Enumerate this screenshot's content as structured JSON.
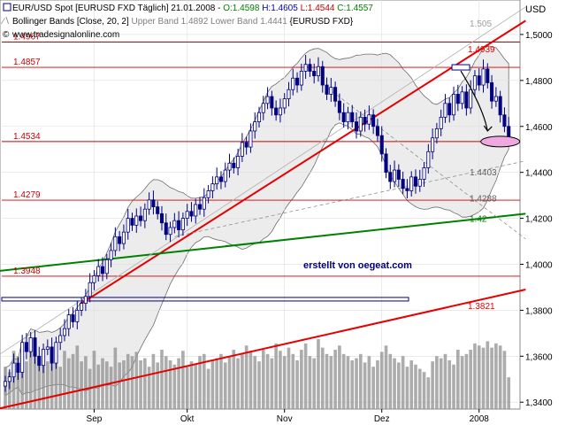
{
  "header": {
    "line1_prefix": "EUR/USD Spot [EURUSD FXD  Täglich] 21.01.2008 - ",
    "open": "O:1.4598",
    "high": "H:1.4605",
    "low": "L:1.4544",
    "close": "C:1.4557",
    "line2_prefix": "Bollinger Bands [Close, 20, 2]",
    "line2_bands": " Upper Band 1.4892 Lower Band 1.4441",
    "line2_suffix": " {EURUSD FXD}",
    "line3": "www.tradesignalonline.com"
  },
  "colors": {
    "candle_up": "#ffffff",
    "candle_down": "#000080",
    "band_fill": "#ececec",
    "level_line": "#cc0000",
    "trend_red": "#e60000",
    "trend_green": "#008000",
    "ohlc_open": "#008000",
    "ohlc_high": "#0000c0",
    "ohlc_low": "#c00000",
    "ohlc_close": "#008000"
  },
  "chart_data": {
    "type": "candlestick",
    "currency_label": "USD",
    "y_axis": {
      "range": [
        1.337,
        1.515
      ],
      "ticks": [
        "1,3400",
        "1,3600",
        "1,3800",
        "1,4000",
        "1,4200",
        "1,4400",
        "1,4600",
        "1,4800",
        "1,5000"
      ],
      "tick_values": [
        1.34,
        1.36,
        1.38,
        1.4,
        1.42,
        1.44,
        1.46,
        1.48,
        1.5
      ]
    },
    "x_axis": {
      "ticks": [
        "Sep",
        "Okt",
        "Nov",
        "Dez",
        "2008"
      ],
      "tick_day_index": [
        21,
        43,
        66,
        89,
        112
      ]
    },
    "horizontal_levels": [
      {
        "value": 1.4967,
        "label": "1.4967",
        "label_side": "left"
      },
      {
        "value": 1.4857,
        "label": "1.4857",
        "label_side": "left"
      },
      {
        "value": 1.4534,
        "label": "1.4534",
        "label_side": "left"
      },
      {
        "value": 1.4279,
        "label": "1.4279",
        "label_side": "left"
      },
      {
        "value": 1.3948,
        "label": "1.3948",
        "label_side": "left"
      }
    ],
    "trendline_labels": [
      {
        "value": 1.4939,
        "label": "1.4939"
      },
      {
        "value": 1.42,
        "label": "1.42"
      },
      {
        "value": 1.3821,
        "label": "1.3821"
      },
      {
        "value": 1.4403,
        "label": "1.4403"
      },
      {
        "value": 1.4288,
        "label": "1.4288"
      },
      {
        "value": 1.505,
        "label": "1.505"
      }
    ],
    "annotation": "erstellt von oegeat.com",
    "closes": [
      1.349,
      1.351,
      1.357,
      1.353,
      1.366,
      1.362,
      1.368,
      1.36,
      1.356,
      1.363,
      1.364,
      1.357,
      1.366,
      1.369,
      1.372,
      1.378,
      1.375,
      1.38,
      1.383,
      1.386,
      1.392,
      1.395,
      1.399,
      1.396,
      1.402,
      1.406,
      1.412,
      1.409,
      1.414,
      1.42,
      1.417,
      1.421,
      1.419,
      1.424,
      1.428,
      1.425,
      1.422,
      1.418,
      1.413,
      1.416,
      1.419,
      1.415,
      1.42,
      1.423,
      1.421,
      1.426,
      1.424,
      1.429,
      1.432,
      1.435,
      1.438,
      1.436,
      1.441,
      1.444,
      1.442,
      1.447,
      1.453,
      1.451,
      1.458,
      1.462,
      1.466,
      1.47,
      1.473,
      1.468,
      1.465,
      1.468,
      1.472,
      1.476,
      1.481,
      1.478,
      1.484,
      1.487,
      1.484,
      1.482,
      1.486,
      1.478,
      1.474,
      1.477,
      1.471,
      1.466,
      1.462,
      1.466,
      1.462,
      1.458,
      1.464,
      1.461,
      1.465,
      1.46,
      1.456,
      1.448,
      1.44,
      1.436,
      1.441,
      1.437,
      1.433,
      1.432,
      1.438,
      1.434,
      1.437,
      1.442,
      1.449,
      1.455,
      1.459,
      1.464,
      1.47,
      1.465,
      1.474,
      1.47,
      1.475,
      1.468,
      1.476,
      1.482,
      1.478,
      1.485,
      1.479,
      1.471,
      1.473,
      1.465,
      1.46,
      1.4557
    ],
    "volume_range": [
      0,
      100
    ],
    "volumes": [
      40,
      35,
      55,
      50,
      60,
      45,
      60,
      62,
      48,
      52,
      45,
      58,
      50,
      40,
      55,
      48,
      52,
      60,
      45,
      50,
      38,
      55,
      42,
      48,
      45,
      40,
      58,
      44,
      46,
      52,
      50,
      54,
      46,
      48,
      40,
      52,
      44,
      56,
      50,
      46,
      42,
      48,
      55,
      40,
      45,
      42,
      50,
      52,
      38,
      46,
      48,
      52,
      44,
      50,
      56,
      48,
      52,
      60,
      55,
      50,
      45,
      56,
      52,
      48,
      62,
      55,
      50,
      58,
      52,
      46,
      56,
      62,
      50,
      48,
      66,
      58,
      52,
      50,
      56,
      60,
      52,
      50,
      46,
      48,
      52,
      44,
      50,
      40,
      46,
      54,
      60,
      52,
      48,
      44,
      50,
      40,
      46,
      42,
      38,
      35,
      30,
      45,
      50,
      48,
      52,
      46,
      42,
      56,
      50,
      52,
      56,
      62,
      60,
      58,
      64,
      58,
      62,
      60,
      55,
      30
    ]
  }
}
